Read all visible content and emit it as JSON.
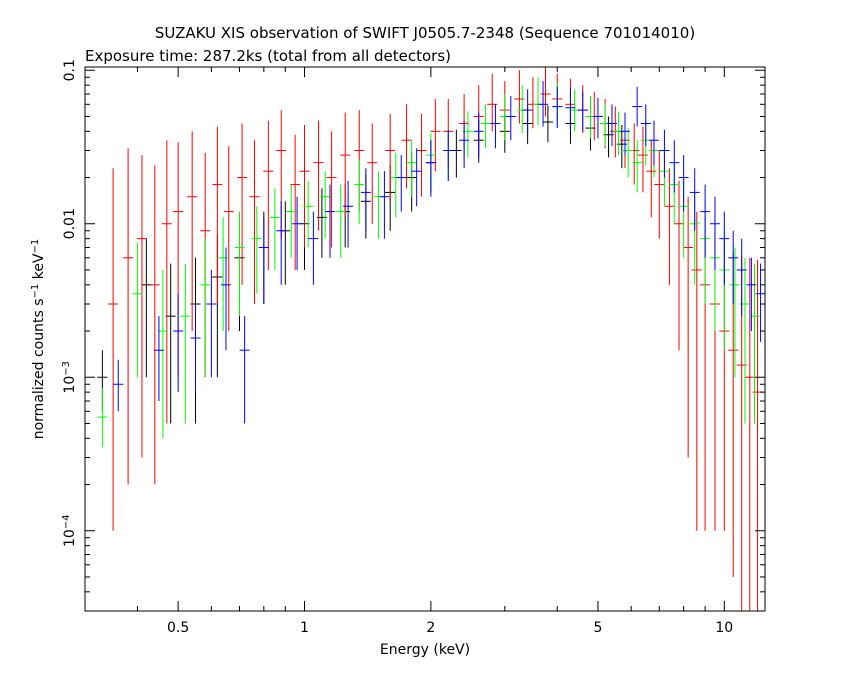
{
  "header": {
    "title": "SUZAKU XIS observation of SWIFT J0505.7-2348 (Sequence 701014010)",
    "subtitle": "Exposure time: 287.2ks (total from all detectors)"
  },
  "chart_data": {
    "type": "scatter",
    "title": "SUZAKU XIS observation of SWIFT J0505.7-2348 (Sequence 701014010)",
    "subtitle": "Exposure time: 287.2ks (total from all detectors)",
    "xlabel": "Energy (keV)",
    "ylabel_parts": {
      "main": "normalized counts s",
      "exp1": "−1",
      "mid": " keV",
      "exp2": "−1"
    },
    "xscale": "log",
    "yscale": "log",
    "xlim": [
      0.3,
      12.5
    ],
    "ylim": [
      3e-05,
      0.105
    ],
    "x_ticks": [
      {
        "value": 0.5,
        "label": "0.5"
      },
      {
        "value": 1,
        "label": "1"
      },
      {
        "value": 2,
        "label": "2"
      },
      {
        "value": 5,
        "label": "5"
      },
      {
        "value": 10,
        "label": "10"
      }
    ],
    "y_ticks": [
      {
        "value": 0.1,
        "base": "0.1",
        "exp": ""
      },
      {
        "value": 0.01,
        "base": "0.01",
        "exp": ""
      },
      {
        "value": 0.001,
        "base": "10",
        "exp": "−3"
      },
      {
        "value": 0.0001,
        "base": "10",
        "exp": "−4"
      }
    ],
    "grid": false,
    "series": [
      {
        "color": "#000000",
        "x": [
          0.33,
          0.42,
          0.48,
          0.55,
          0.62,
          0.7,
          0.8,
          0.9,
          1.0,
          1.1,
          1.25,
          1.4,
          1.6,
          1.8,
          2.0,
          2.3,
          2.6,
          3.0,
          3.4,
          3.8,
          4.3,
          4.8,
          5.3,
          5.7
        ],
        "y": [
          0.001,
          0.004,
          0.0025,
          0.003,
          0.0045,
          0.006,
          0.007,
          0.009,
          0.01,
          0.011,
          0.012,
          0.014,
          0.016,
          0.02,
          0.025,
          0.03,
          0.035,
          0.04,
          0.045,
          0.046,
          0.045,
          0.042,
          0.038,
          0.033
        ],
        "err_lo": [
          0.0004,
          0.003,
          0.002,
          0.0025,
          0.0035,
          0.004,
          0.004,
          0.005,
          0.005,
          0.005,
          0.005,
          0.006,
          0.007,
          0.008,
          0.009,
          0.01,
          0.01,
          0.011,
          0.012,
          0.012,
          0.012,
          0.012,
          0.011,
          0.01
        ],
        "err_hi": [
          0.0005,
          0.004,
          0.003,
          0.003,
          0.004,
          0.005,
          0.005,
          0.005,
          0.006,
          0.006,
          0.006,
          0.007,
          0.008,
          0.009,
          0.01,
          0.011,
          0.012,
          0.012,
          0.013,
          0.013,
          0.013,
          0.012,
          0.012,
          0.011
        ]
      },
      {
        "color": "#ff0000",
        "x": [
          0.35,
          0.38,
          0.41,
          0.44,
          0.47,
          0.5,
          0.54,
          0.58,
          0.62,
          0.66,
          0.71,
          0.76,
          0.82,
          0.88,
          0.95,
          1.0,
          1.08,
          1.16,
          1.25,
          1.35,
          1.45,
          1.6,
          1.75,
          1.9,
          2.05,
          2.2,
          2.4,
          2.6,
          2.8,
          3.0,
          3.25,
          3.5,
          3.75,
          4.0,
          4.3,
          4.6,
          4.9,
          5.2,
          5.5,
          5.8,
          6.1,
          6.4,
          6.7,
          7.0,
          7.4,
          7.8,
          8.2,
          8.6,
          9.0,
          9.5,
          10.0,
          10.5,
          11.0,
          11.5,
          12.0
        ],
        "y": [
          0.003,
          0.006,
          0.008,
          0.004,
          0.01,
          0.012,
          0.015,
          0.009,
          0.018,
          0.012,
          0.02,
          0.015,
          0.022,
          0.03,
          0.018,
          0.022,
          0.025,
          0.02,
          0.028,
          0.03,
          0.025,
          0.03,
          0.035,
          0.03,
          0.04,
          0.04,
          0.045,
          0.05,
          0.06,
          0.055,
          0.065,
          0.06,
          0.07,
          0.065,
          0.06,
          0.055,
          0.05,
          0.045,
          0.04,
          0.035,
          0.03,
          0.028,
          0.022,
          0.018,
          0.013,
          0.01,
          0.007,
          0.005,
          0.004,
          0.003,
          0.002,
          0.0015,
          0.0012,
          0.001,
          0.0008
        ],
        "err_lo": [
          0.0029,
          0.0058,
          0.0077,
          0.0038,
          0.0095,
          0.011,
          0.013,
          0.008,
          0.015,
          0.01,
          0.016,
          0.012,
          0.017,
          0.022,
          0.013,
          0.015,
          0.016,
          0.013,
          0.017,
          0.018,
          0.015,
          0.016,
          0.018,
          0.015,
          0.018,
          0.017,
          0.018,
          0.019,
          0.02,
          0.018,
          0.02,
          0.018,
          0.02,
          0.018,
          0.017,
          0.016,
          0.015,
          0.014,
          0.013,
          0.012,
          0.012,
          0.012,
          0.011,
          0.01,
          0.009,
          0.0085,
          0.0067,
          0.0049,
          0.0039,
          0.0029,
          0.0019,
          0.00145,
          0.00117,
          0.00098,
          0.00079
        ],
        "err_hi": [
          0.02,
          0.025,
          0.02,
          0.02,
          0.025,
          0.022,
          0.025,
          0.02,
          0.025,
          0.02,
          0.025,
          0.02,
          0.025,
          0.025,
          0.02,
          0.022,
          0.022,
          0.02,
          0.025,
          0.025,
          0.02,
          0.022,
          0.025,
          0.022,
          0.025,
          0.025,
          0.025,
          0.03,
          0.035,
          0.03,
          0.035,
          0.03,
          0.035,
          0.03,
          0.028,
          0.025,
          0.022,
          0.02,
          0.018,
          0.016,
          0.015,
          0.015,
          0.013,
          0.012,
          0.01,
          0.009,
          0.008,
          0.007,
          0.007,
          0.006,
          0.006,
          0.005,
          0.005,
          0.005,
          0.005
        ]
      },
      {
        "color": "#00ff00",
        "x": [
          0.33,
          0.4,
          0.46,
          0.52,
          0.58,
          0.64,
          0.7,
          0.77,
          0.85,
          0.93,
          1.02,
          1.12,
          1.22,
          1.35,
          1.5,
          1.65,
          1.8,
          2.0,
          2.2,
          2.45,
          2.7,
          3.0,
          3.3,
          3.6,
          4.0,
          4.4,
          4.8,
          5.2,
          5.6,
          5.9,
          6.2,
          6.5,
          6.8,
          7.2,
          7.6,
          8.0,
          8.5,
          9.0,
          9.5,
          10.0,
          10.6,
          11.2,
          11.8
        ],
        "y": [
          0.00055,
          0.0035,
          0.002,
          0.0025,
          0.004,
          0.006,
          0.007,
          0.008,
          0.011,
          0.012,
          0.013,
          0.015,
          0.012,
          0.018,
          0.015,
          0.02,
          0.025,
          0.028,
          0.03,
          0.04,
          0.045,
          0.05,
          0.055,
          0.06,
          0.058,
          0.055,
          0.05,
          0.045,
          0.04,
          0.03,
          0.025,
          0.035,
          0.03,
          0.022,
          0.018,
          0.013,
          0.01,
          0.008,
          0.006,
          0.005,
          0.004,
          0.003,
          0.0025
        ],
        "err_lo": [
          0.0002,
          0.0025,
          0.0016,
          0.002,
          0.003,
          0.004,
          0.0045,
          0.0045,
          0.006,
          0.006,
          0.006,
          0.007,
          0.006,
          0.008,
          0.007,
          0.009,
          0.01,
          0.011,
          0.011,
          0.013,
          0.014,
          0.015,
          0.016,
          0.016,
          0.015,
          0.015,
          0.014,
          0.013,
          0.012,
          0.01,
          0.009,
          0.011,
          0.01,
          0.009,
          0.008,
          0.007,
          0.006,
          0.005,
          0.004,
          0.0035,
          0.003,
          0.0025,
          0.002
        ],
        "err_hi": [
          0.0003,
          0.004,
          0.003,
          0.003,
          0.004,
          0.005,
          0.005,
          0.005,
          0.006,
          0.006,
          0.006,
          0.007,
          0.006,
          0.008,
          0.007,
          0.009,
          0.01,
          0.011,
          0.011,
          0.014,
          0.015,
          0.02,
          0.025,
          0.03,
          0.025,
          0.02,
          0.018,
          0.016,
          0.014,
          0.012,
          0.01,
          0.012,
          0.011,
          0.009,
          0.008,
          0.007,
          0.006,
          0.005,
          0.004,
          0.004,
          0.003,
          0.003,
          0.003
        ]
      },
      {
        "color": "#0000ff",
        "x": [
          0.36,
          0.45,
          0.5,
          0.55,
          0.6,
          0.65,
          0.72,
          0.8,
          0.88,
          0.96,
          1.05,
          1.15,
          1.27,
          1.4,
          1.55,
          1.7,
          1.85,
          2.0,
          2.2,
          2.4,
          2.6,
          2.85,
          3.1,
          3.4,
          3.7,
          4.0,
          4.3,
          4.6,
          5.0,
          5.4,
          5.8,
          6.2,
          6.5,
          6.8,
          7.2,
          7.6,
          8.0,
          8.5,
          9.0,
          9.5,
          10.0,
          10.5,
          11.0,
          11.6,
          12.2
        ],
        "y": [
          0.0009,
          0.0015,
          0.002,
          0.0018,
          0.003,
          0.004,
          0.0015,
          0.007,
          0.009,
          0.01,
          0.008,
          0.012,
          0.013,
          0.016,
          0.015,
          0.02,
          0.022,
          0.025,
          0.03,
          0.035,
          0.04,
          0.045,
          0.05,
          0.055,
          0.06,
          0.058,
          0.057,
          0.055,
          0.05,
          0.045,
          0.04,
          0.058,
          0.045,
          0.035,
          0.03,
          0.025,
          0.02,
          0.016,
          0.012,
          0.01,
          0.008,
          0.006,
          0.005,
          0.004,
          0.0035
        ],
        "err_lo": [
          0.0003,
          0.0008,
          0.0012,
          0.001,
          0.002,
          0.0025,
          0.001,
          0.004,
          0.005,
          0.005,
          0.004,
          0.006,
          0.006,
          0.007,
          0.007,
          0.008,
          0.009,
          0.01,
          0.011,
          0.012,
          0.013,
          0.014,
          0.015,
          0.016,
          0.017,
          0.016,
          0.016,
          0.015,
          0.014,
          0.013,
          0.012,
          0.015,
          0.013,
          0.011,
          0.01,
          0.009,
          0.008,
          0.007,
          0.006,
          0.005,
          0.004,
          0.003,
          0.0025,
          0.002,
          0.0018
        ],
        "err_hi": [
          0.0004,
          0.001,
          0.0015,
          0.0012,
          0.002,
          0.003,
          0.001,
          0.004,
          0.005,
          0.005,
          0.004,
          0.006,
          0.006,
          0.007,
          0.007,
          0.008,
          0.009,
          0.01,
          0.011,
          0.012,
          0.013,
          0.015,
          0.018,
          0.02,
          0.025,
          0.02,
          0.02,
          0.018,
          0.016,
          0.015,
          0.013,
          0.02,
          0.015,
          0.012,
          0.011,
          0.01,
          0.008,
          0.007,
          0.006,
          0.005,
          0.004,
          0.003,
          0.003,
          0.002,
          0.002
        ]
      }
    ]
  }
}
